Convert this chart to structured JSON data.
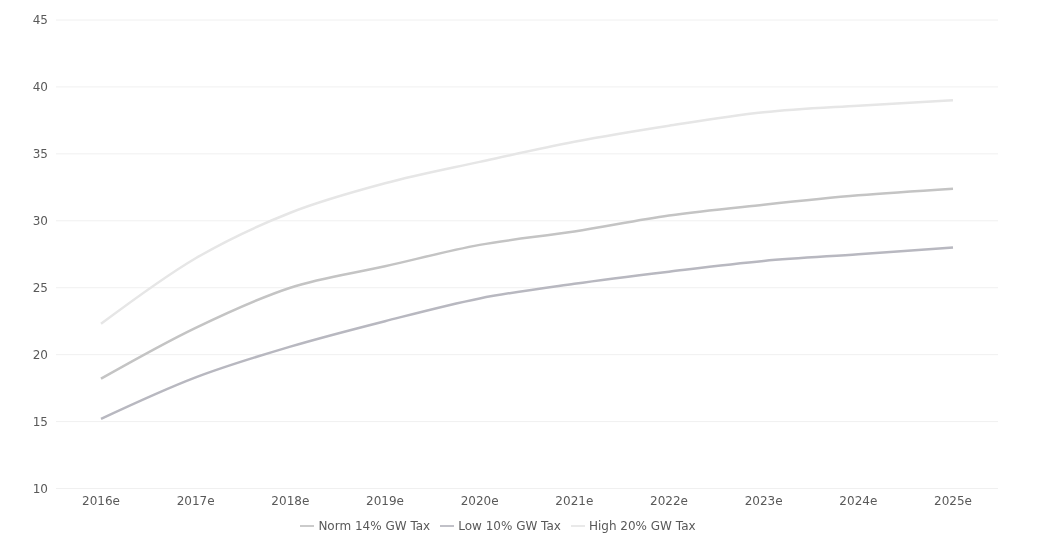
{
  "chart_data": {
    "type": "line",
    "categories": [
      "2016e",
      "2017e",
      "2018e",
      "2019e",
      "2020e",
      "2021e",
      "2022e",
      "2023e",
      "2024e",
      "2025e"
    ],
    "series": [
      {
        "name": "Norm 14% GW Tax",
        "color": "#c4c4c4",
        "values": [
          18.2,
          22.0,
          25.0,
          26.6,
          28.2,
          29.2,
          30.4,
          31.2,
          31.9,
          32.4
        ]
      },
      {
        "name": "Low 10% GW Tax",
        "color": "#b8b8c0",
        "values": [
          15.2,
          18.3,
          20.6,
          22.5,
          24.2,
          25.3,
          26.2,
          27.0,
          27.5,
          28.0
        ]
      },
      {
        "name": "High 20% GW Tax",
        "color": "#e6e6e6",
        "values": [
          22.3,
          27.2,
          30.6,
          32.8,
          34.4,
          35.9,
          37.1,
          38.1,
          38.6,
          39.0
        ]
      }
    ],
    "ylim": [
      10,
      45
    ],
    "yticks": [
      10,
      15,
      20,
      25,
      30,
      35,
      40,
      45
    ],
    "grid": "y",
    "legend": "bottom",
    "marker": "none",
    "line_style": "solid"
  }
}
